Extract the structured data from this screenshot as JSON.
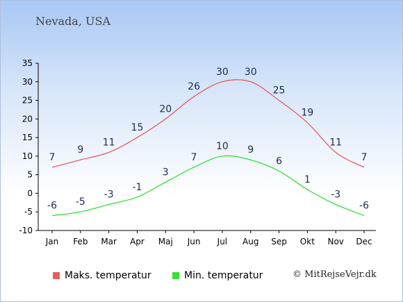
{
  "location": "Nevada, USA",
  "credit": "© MitRejseVejr.dk",
  "colors": {
    "max": "#e85d5d",
    "min": "#36e036"
  },
  "chart_data": {
    "type": "line",
    "categories": [
      "Jan",
      "Feb",
      "Mar",
      "Apr",
      "Maj",
      "Jun",
      "Jul",
      "Aug",
      "Sep",
      "Okt",
      "Nov",
      "Dec"
    ],
    "series": [
      {
        "name": "Maks. temperatur",
        "values": [
          7,
          9,
          11,
          15,
          20,
          26,
          30,
          30,
          25,
          19,
          11,
          7
        ]
      },
      {
        "name": "Min. temperatur",
        "values": [
          -6,
          -5,
          -3,
          -1,
          3,
          7,
          10,
          9,
          6,
          1,
          -3,
          -6
        ]
      }
    ],
    "yticks": [
      -10,
      -5,
      0,
      5,
      10,
      15,
      20,
      25,
      30,
      35
    ],
    "ylim": [
      -10,
      35
    ],
    "grid": false,
    "legend_position": "bottom"
  }
}
